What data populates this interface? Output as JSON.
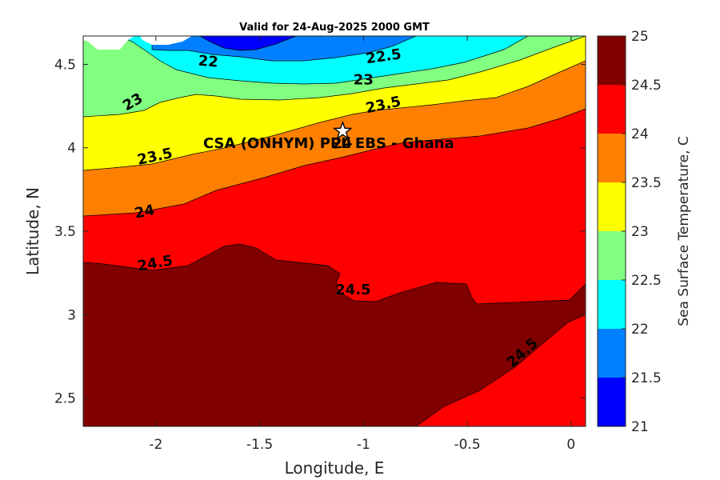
{
  "chart_data": {
    "type": "contour",
    "title": "Valid for 24-Aug-2025 2000 GMT",
    "xlabel": "Longitude, E",
    "ylabel": "Latitude, N",
    "xlim": [
      -2.35,
      0.07
    ],
    "ylim": [
      2.33,
      4.67
    ],
    "x_ticks": [
      -2,
      -1.5,
      -1,
      -0.5,
      0
    ],
    "x_tick_labels": [
      "-2",
      "-1.5",
      "-1",
      "-0.5",
      "0"
    ],
    "y_ticks": [
      2.5,
      3,
      3.5,
      4,
      4.5
    ],
    "y_tick_labels": [
      "2.5",
      "3",
      "3.5",
      "4",
      "4.5"
    ],
    "colorbar": {
      "label": "Sea Surface Temperature, C",
      "levels": [
        21,
        21.5,
        22,
        22.5,
        23,
        23.5,
        24,
        24.5,
        25
      ],
      "tick_labels": [
        "21",
        "21.5",
        "22",
        "22.5",
        "23",
        "23.5",
        "24",
        "24.5",
        "25"
      ],
      "colors": [
        "#0000ff",
        "#0080ff",
        "#00ffff",
        "#80ff80",
        "#ffff00",
        "#ff8000",
        "#ff0000",
        "#800000"
      ]
    },
    "contour_labels": [
      {
        "text": "22",
        "lon": -1.75,
        "lat": 4.49
      },
      {
        "text": "22.5",
        "lon": -0.9,
        "lat": 4.52
      },
      {
        "text": "23",
        "lon": -2.1,
        "lat": 4.25
      },
      {
        "text": "23",
        "lon": -1.0,
        "lat": 4.38
      },
      {
        "text": "23.5",
        "lon": -0.9,
        "lat": 4.23
      },
      {
        "text": "23.5",
        "lon": -2.0,
        "lat": 3.92
      },
      {
        "text": "24",
        "lon": -1.1,
        "lat": 4.0
      },
      {
        "text": "24",
        "lon": -2.05,
        "lat": 3.59
      },
      {
        "text": "24.5",
        "lon": -2.0,
        "lat": 3.28
      },
      {
        "text": "24.5",
        "lon": -1.05,
        "lat": 3.12
      },
      {
        "text": "24.5",
        "lon": -0.22,
        "lat": 2.75
      }
    ],
    "site": {
      "name": "CSA (ONHYM) PPL EBS  - Ghana",
      "lon": -1.1,
      "lat": 4.1
    }
  }
}
